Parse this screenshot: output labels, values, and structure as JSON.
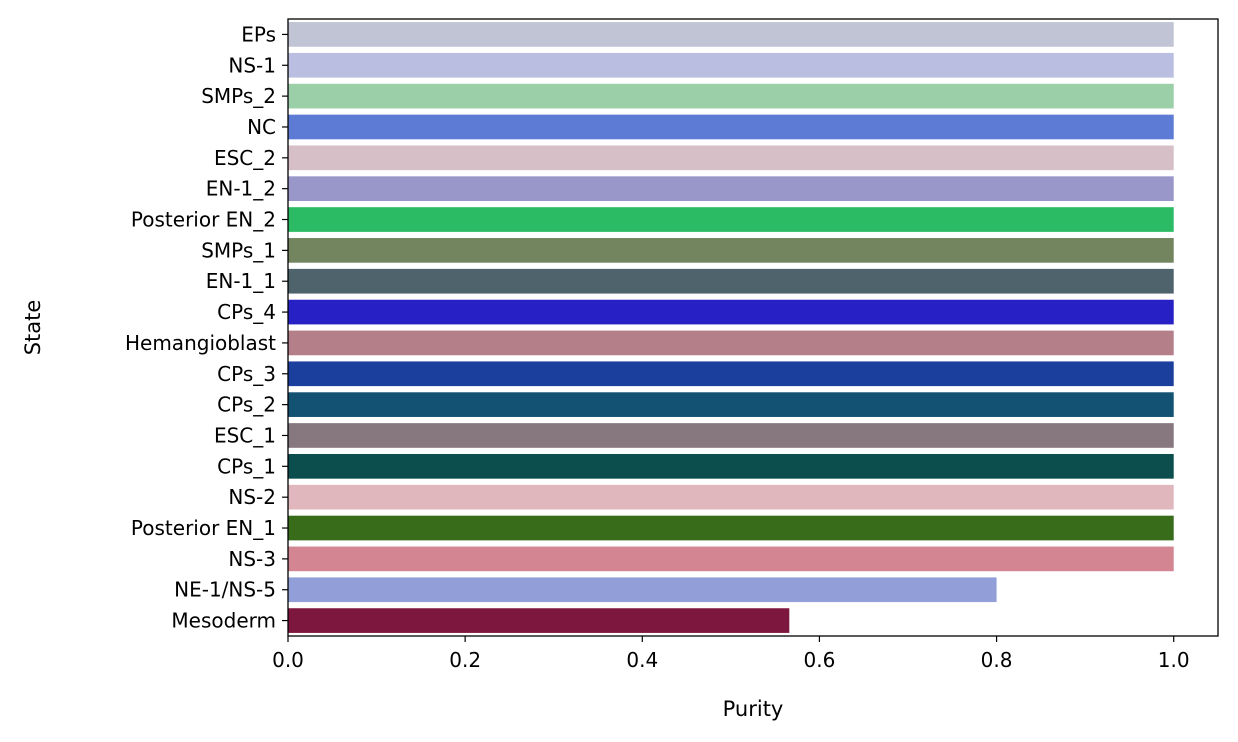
{
  "chart_data": {
    "type": "bar",
    "orientation": "horizontal",
    "xlabel": "Purity",
    "ylabel": "State",
    "xlim": [
      0.0,
      1.05
    ],
    "xticks": [
      {
        "value": 0.0,
        "label": "0.0"
      },
      {
        "value": 0.2,
        "label": "0.2"
      },
      {
        "value": 0.4,
        "label": "0.4"
      },
      {
        "value": 0.6,
        "label": "0.6"
      },
      {
        "value": 0.8,
        "label": "0.8"
      },
      {
        "value": 1.0,
        "label": "1.0"
      }
    ],
    "grid": false,
    "legend": "none",
    "bars": [
      {
        "category": "EPs",
        "value": 1.0,
        "color": "#c1c4d4"
      },
      {
        "category": "NS-1",
        "value": 1.0,
        "color": "#babfe1"
      },
      {
        "category": "SMPs_2",
        "value": 1.0,
        "color": "#9bcfa8"
      },
      {
        "category": "NC",
        "value": 1.0,
        "color": "#5d7bd5"
      },
      {
        "category": "ESC_2",
        "value": 1.0,
        "color": "#d6bfc7"
      },
      {
        "category": "EN-1_2",
        "value": 1.0,
        "color": "#9996c9"
      },
      {
        "category": "Posterior EN_2",
        "value": 1.0,
        "color": "#2abb64"
      },
      {
        "category": "SMPs_1",
        "value": 1.0,
        "color": "#72855e"
      },
      {
        "category": "EN-1_1",
        "value": 1.0,
        "color": "#4e636b"
      },
      {
        "category": "CPs_4",
        "value": 1.0,
        "color": "#2620c5"
      },
      {
        "category": "Hemangioblast",
        "value": 1.0,
        "color": "#b47f89"
      },
      {
        "category": "CPs_3",
        "value": 1.0,
        "color": "#1b3f9d"
      },
      {
        "category": "CPs_2",
        "value": 1.0,
        "color": "#145273"
      },
      {
        "category": "ESC_1",
        "value": 1.0,
        "color": "#877880"
      },
      {
        "category": "CPs_1",
        "value": 1.0,
        "color": "#0c4d4d"
      },
      {
        "category": "NS-2",
        "value": 1.0,
        "color": "#e1b7be"
      },
      {
        "category": "Posterior EN_1",
        "value": 1.0,
        "color": "#386c1a"
      },
      {
        "category": "NS-3",
        "value": 1.0,
        "color": "#d48592"
      },
      {
        "category": "NE-1/NS-5",
        "value": 0.8,
        "color": "#929ed8"
      },
      {
        "category": "Mesoderm",
        "value": 0.566,
        "color": "#7d173d"
      }
    ]
  }
}
